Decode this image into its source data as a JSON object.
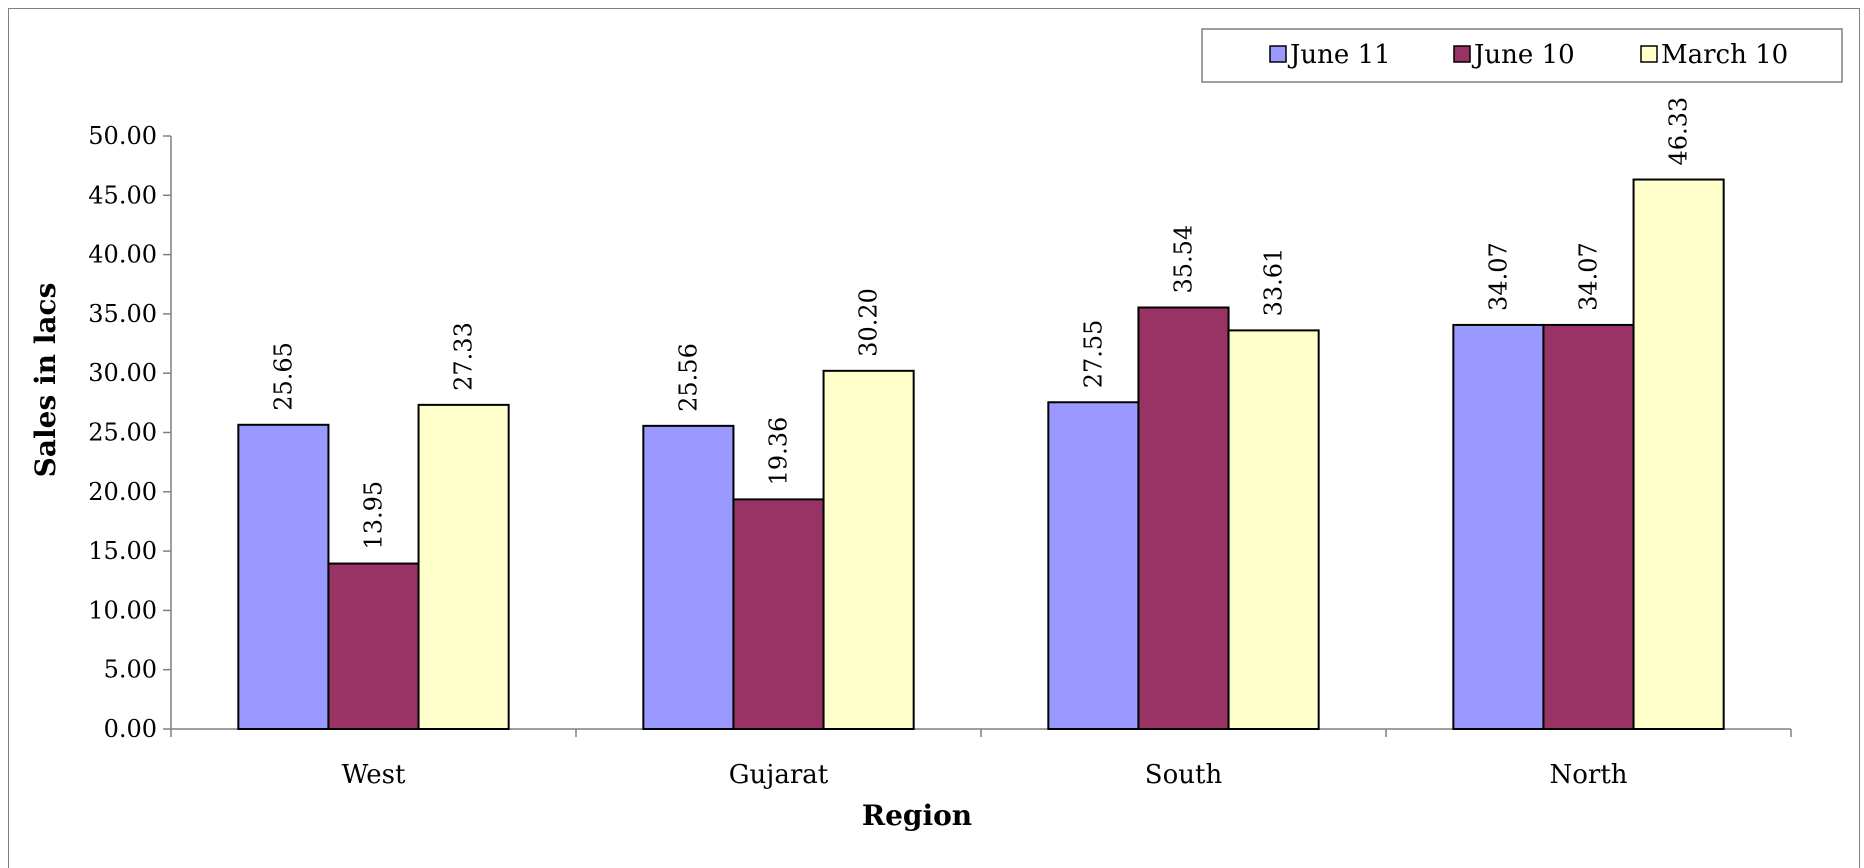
{
  "chart_data": {
    "type": "bar",
    "title": "",
    "xlabel": "Region",
    "ylabel": "Sales in lacs",
    "categories": [
      "West",
      "Gujarat",
      "South",
      "North"
    ],
    "series": [
      {
        "name": "June 11",
        "color": "#9999ff",
        "values": [
          25.65,
          25.56,
          27.55,
          34.07
        ]
      },
      {
        "name": "June 10",
        "color": "#993366",
        "values": [
          13.95,
          19.36,
          35.54,
          34.07
        ]
      },
      {
        "name": "March 10",
        "color": "#ffffcc",
        "values": [
          27.33,
          30.2,
          33.61,
          46.33
        ]
      }
    ],
    "ylim": [
      0,
      50
    ],
    "ytick_step": 5,
    "ytick_decimals": 2,
    "value_decimals": 2,
    "grid": false,
    "legend_position": "top-right",
    "legend_border": true
  }
}
